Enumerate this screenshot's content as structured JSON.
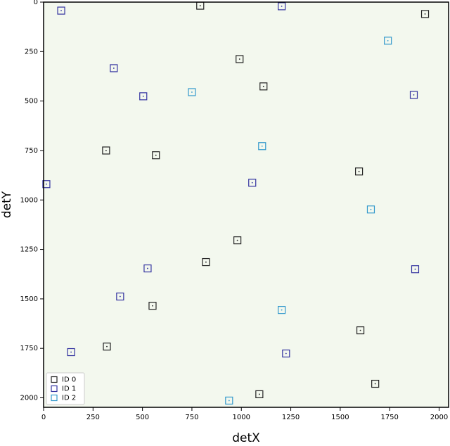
{
  "chart_data": {
    "type": "scatter",
    "x_label": "detX",
    "y_label": "detY",
    "xlim": [
      0,
      2048
    ],
    "ylim": [
      2048,
      0
    ],
    "xticks": [
      0,
      250,
      500,
      750,
      1000,
      1250,
      1500,
      1750,
      2000
    ],
    "yticks": [
      0,
      250,
      500,
      750,
      1000,
      1250,
      1500,
      1750,
      2000
    ],
    "background": "#f3f8ee",
    "legend": "lower left",
    "series": [
      {
        "name": "ID 0",
        "color": "#222222",
        "x": [
          792,
          1929,
          991,
          1112,
          316,
          568,
          1595,
          980,
          821,
          551,
          1602,
          320,
          1677,
          1091
        ],
        "values": [
          18,
          60,
          288,
          426,
          750,
          774,
          856,
          1204,
          1314,
          1535,
          1659,
          1741,
          1929,
          1982
        ]
      },
      {
        "name": "ID 1",
        "color": "#3333a0",
        "x": [
          89,
          1204,
          355,
          504,
          1872,
          14,
          1055,
          526,
          1879,
          387,
          139,
          1226
        ],
        "values": [
          43,
          21,
          334,
          476,
          469,
          920,
          913,
          1346,
          1350,
          1488,
          1769,
          1776
        ]
      },
      {
        "name": "ID 2",
        "color": "#3399cc",
        "x": [
          1741,
          750,
          1105,
          1655,
          1204,
          938
        ],
        "values": [
          195,
          455,
          728,
          1048,
          1556,
          2014
        ]
      }
    ]
  }
}
